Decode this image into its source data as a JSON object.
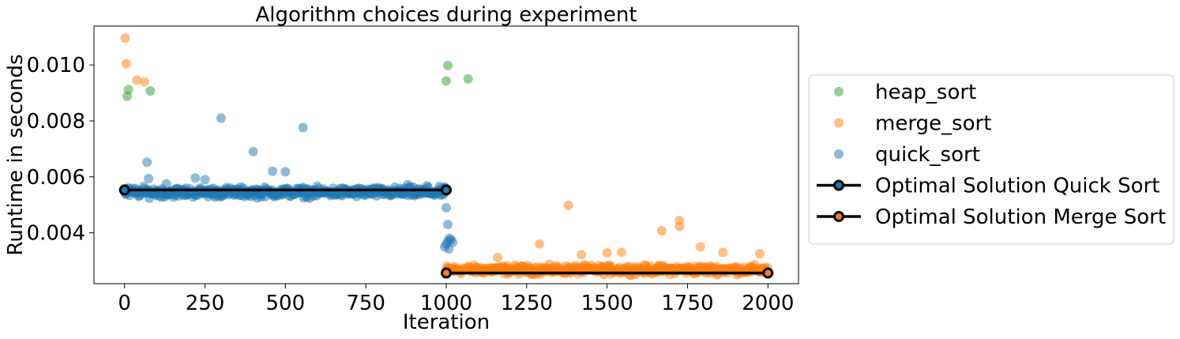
{
  "chart_data": {
    "type": "scatter",
    "title": "Algorithm choices during experiment",
    "xlabel": "Iteration",
    "ylabel": "Runtime in seconds",
    "xlim": [
      -95,
      2095
    ],
    "ylim": [
      0.00218,
      0.01139
    ],
    "xticks": [
      0,
      250,
      500,
      750,
      1000,
      1250,
      1500,
      1750,
      2000
    ],
    "yticks": [
      0.004,
      0.006,
      0.008,
      0.01
    ],
    "ytick_labels": [
      "0.004",
      "0.006",
      "0.008",
      "0.010"
    ],
    "grid": false,
    "legend_position": "outside-right",
    "series": [
      {
        "name": "heap_sort",
        "kind": "scatter",
        "color": "#2ca02c",
        "points": [
          [
            8,
            0.00888
          ],
          [
            12,
            0.00912
          ],
          [
            80,
            0.00907
          ],
          [
            1000,
            0.00943
          ],
          [
            1005,
            0.00998
          ],
          [
            1068,
            0.0095
          ]
        ]
      },
      {
        "name": "merge_sort",
        "kind": "scatter",
        "color": "#ff7f0e",
        "points": [
          [
            2,
            0.01096
          ],
          [
            5,
            0.01004
          ],
          [
            38,
            0.00946
          ],
          [
            62,
            0.00939
          ],
          [
            1290,
            0.0036
          ],
          [
            1380,
            0.00498
          ],
          [
            1500,
            0.00328
          ],
          [
            1545,
            0.0033
          ],
          [
            1670,
            0.00407
          ],
          [
            1725,
            0.00444
          ],
          [
            1725,
            0.00423
          ],
          [
            1790,
            0.0035
          ],
          [
            1860,
            0.0033
          ],
          [
            1975,
            0.00325
          ],
          [
            1160,
            0.00312
          ],
          [
            1420,
            0.00322
          ]
        ],
        "band": {
          "x_range": [
            1000,
            2000
          ],
          "y_center": 0.00268,
          "y_spread": 0.00022
        }
      },
      {
        "name": "quick_sort",
        "kind": "scatter",
        "color": "#1f77b4",
        "points": [
          [
            70,
            0.00652
          ],
          [
            75,
            0.00594
          ],
          [
            300,
            0.0081
          ],
          [
            400,
            0.0069
          ],
          [
            460,
            0.0062
          ],
          [
            500,
            0.00618
          ],
          [
            555,
            0.00776
          ],
          [
            220,
            0.00596
          ],
          [
            250,
            0.0059
          ],
          [
            130,
            0.00575
          ],
          [
            880,
            0.00572
          ],
          [
            940,
            0.00568
          ],
          [
            1000,
            0.0049
          ],
          [
            1005,
            0.0043
          ],
          [
            1000,
            0.0036
          ],
          [
            1005,
            0.0037
          ],
          [
            1010,
            0.0038
          ],
          [
            1015,
            0.00375
          ],
          [
            995,
            0.0035
          ],
          [
            1020,
            0.00366
          ],
          [
            1008,
            0.00342
          ]
        ],
        "band": {
          "x_range": [
            0,
            1000
          ],
          "y_center": 0.00545,
          "y_spread": 0.00025
        }
      },
      {
        "name": "Optimal Solution Quick Sort",
        "kind": "line",
        "color": "#000000",
        "points": [
          [
            0,
            0.00553
          ],
          [
            1000,
            0.00553
          ]
        ]
      },
      {
        "name": "Optimal Solution Merge Sort",
        "kind": "line",
        "color": "#000000",
        "marker_edge": "#000000",
        "points": [
          [
            1000,
            0.00256
          ],
          [
            2000,
            0.00256
          ]
        ]
      }
    ]
  }
}
